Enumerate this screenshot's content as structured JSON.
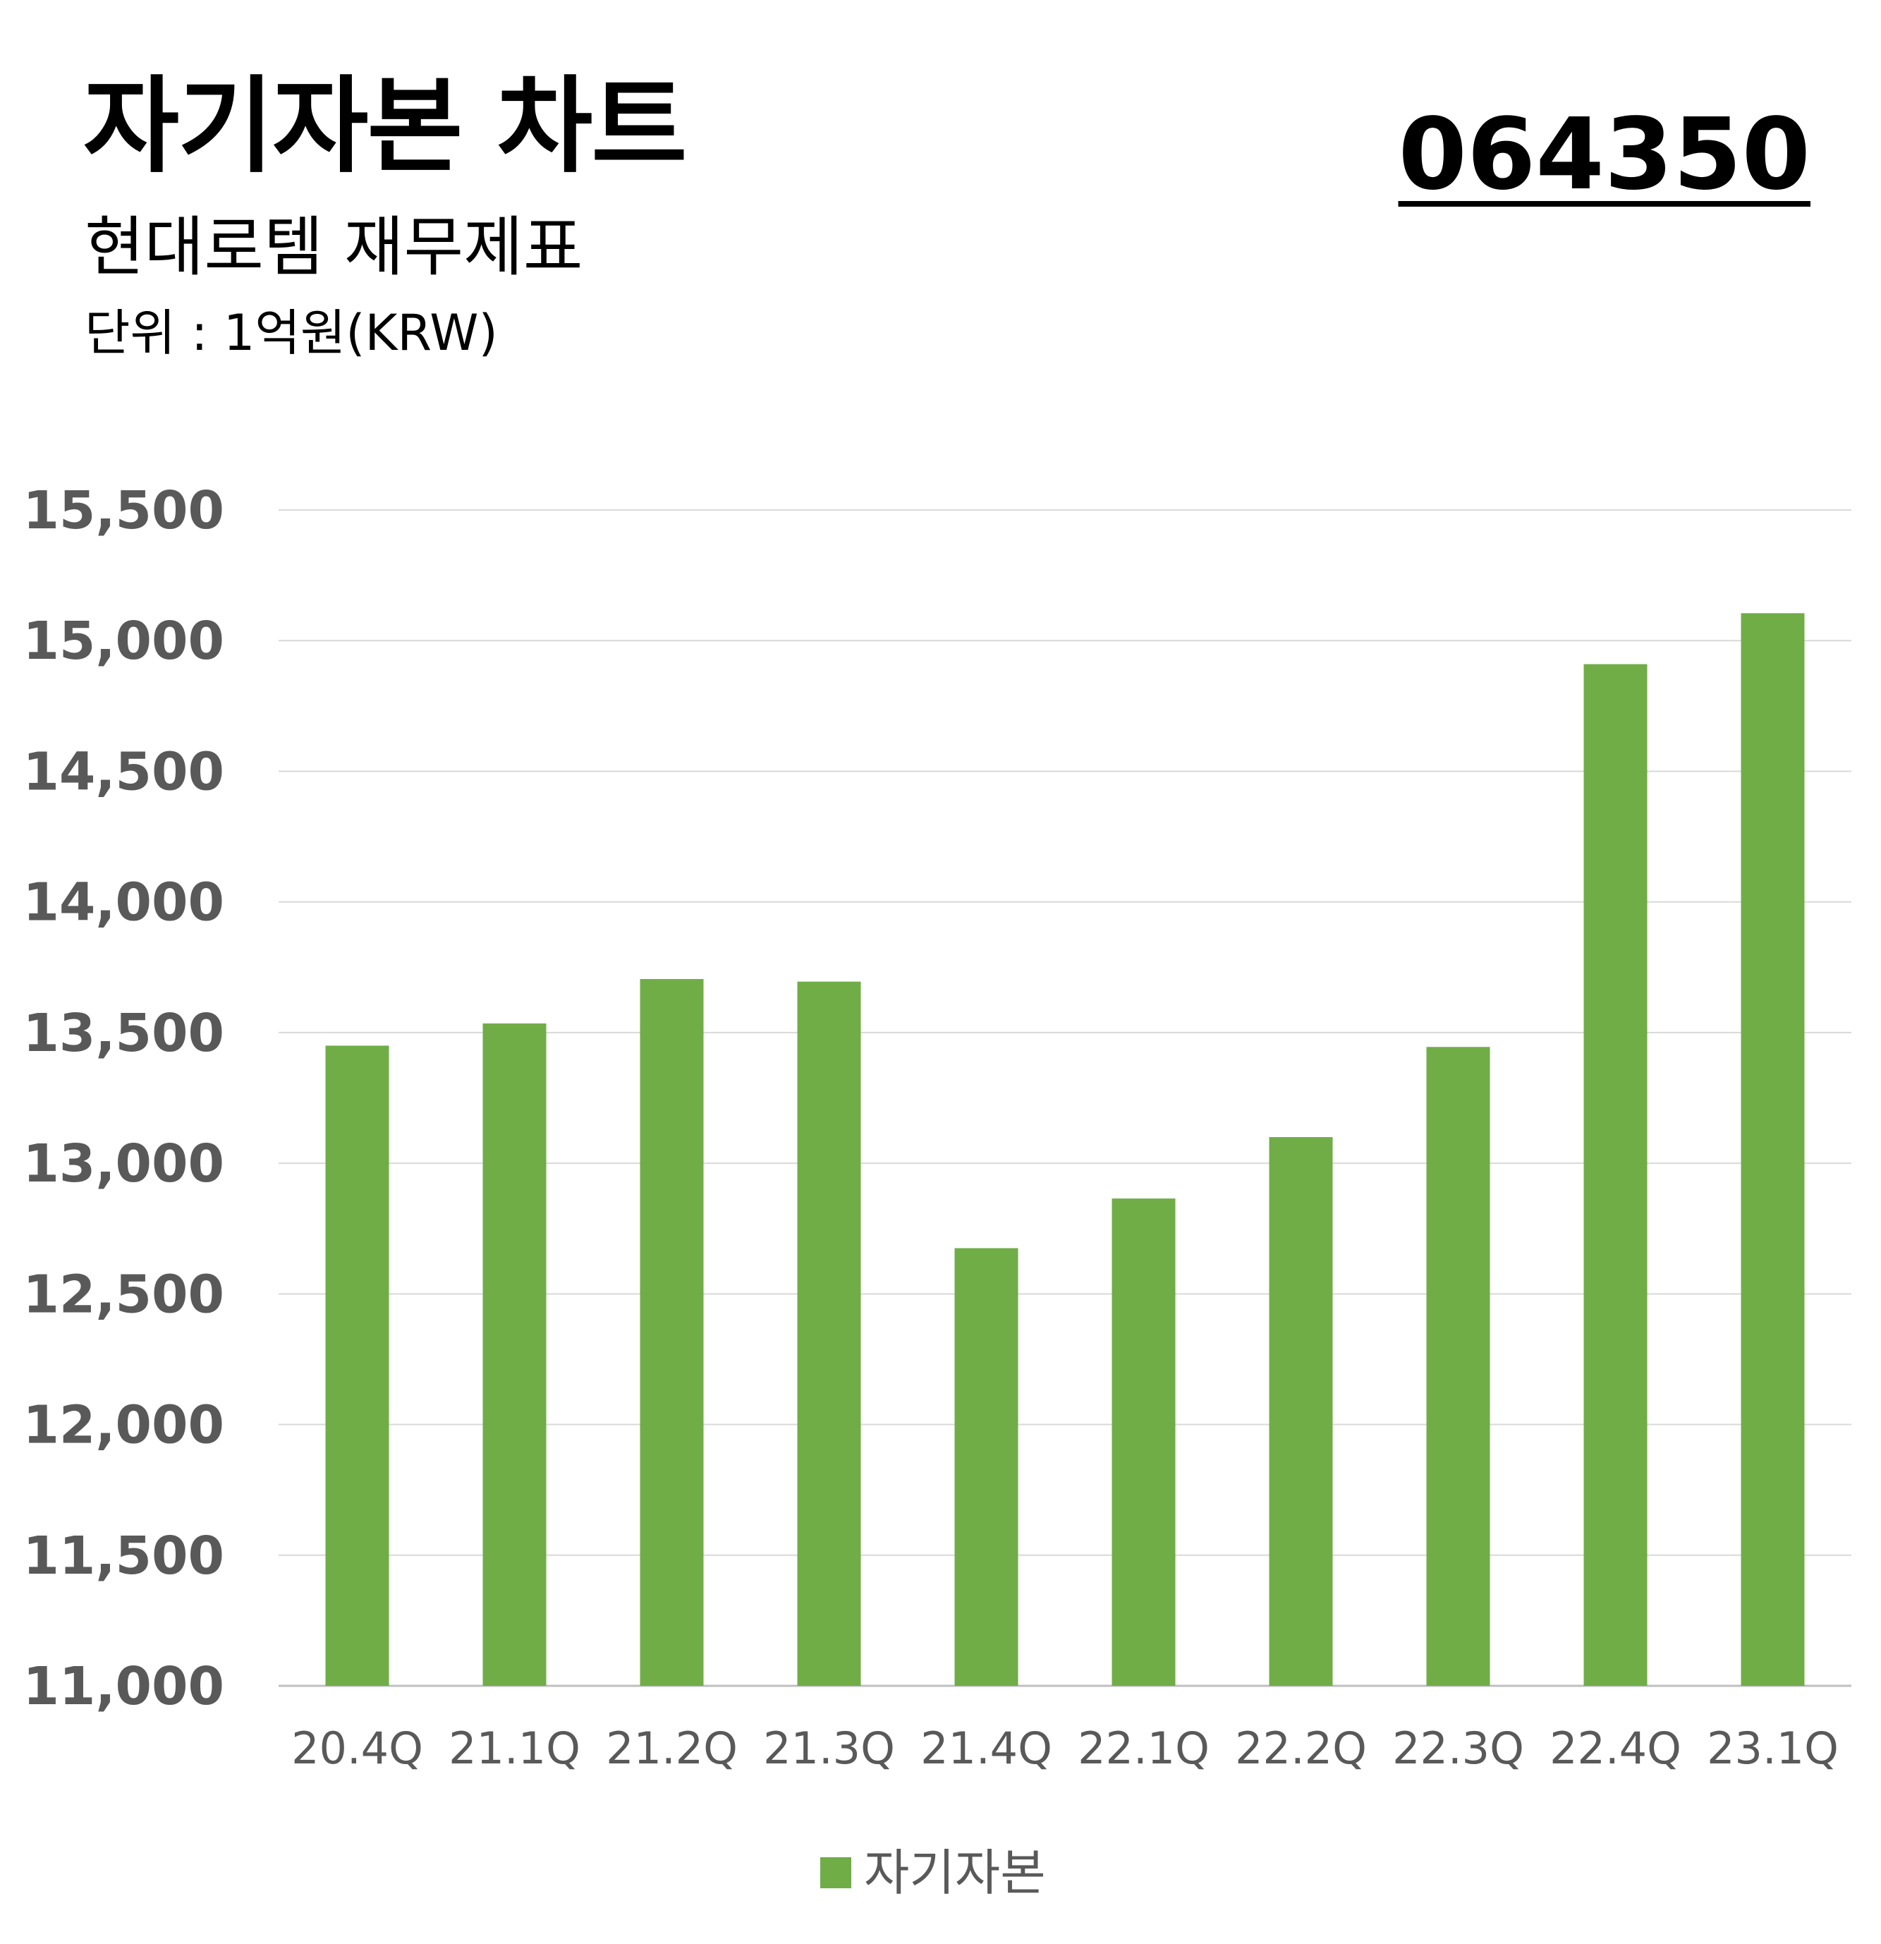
{
  "header": {
    "title": "자기자본 차트",
    "subtitle": "현대로템 재무제표",
    "unit": "단위 : 1억원(KRW)",
    "code": "064350"
  },
  "legend": {
    "label": "자기자본"
  },
  "colors": {
    "bar": "#70AD47",
    "grid": "#D9D9D9",
    "tick_text": "#595959"
  },
  "chart_data": {
    "type": "bar",
    "categories": [
      "20.4Q",
      "21.1Q",
      "21.2Q",
      "21.3Q",
      "21.4Q",
      "22.1Q",
      "22.2Q",
      "22.3Q",
      "22.4Q",
      "23.1Q"
    ],
    "series": [
      {
        "name": "자기자본",
        "values": [
          13450,
          13535,
          13705,
          13695,
          12675,
          12865,
          13100,
          13445,
          14910,
          15105
        ]
      }
    ],
    "ylim": [
      11000,
      15500
    ],
    "yticks": [
      11000,
      11500,
      12000,
      12500,
      13000,
      13500,
      14000,
      14500,
      15000,
      15500
    ],
    "ytick_labels": [
      "11,000",
      "11,500",
      "12,000",
      "12,500",
      "13,000",
      "13,500",
      "14,000",
      "14,500",
      "15,000",
      "15,500"
    ],
    "grid": true,
    "legend_position": "bottom"
  }
}
